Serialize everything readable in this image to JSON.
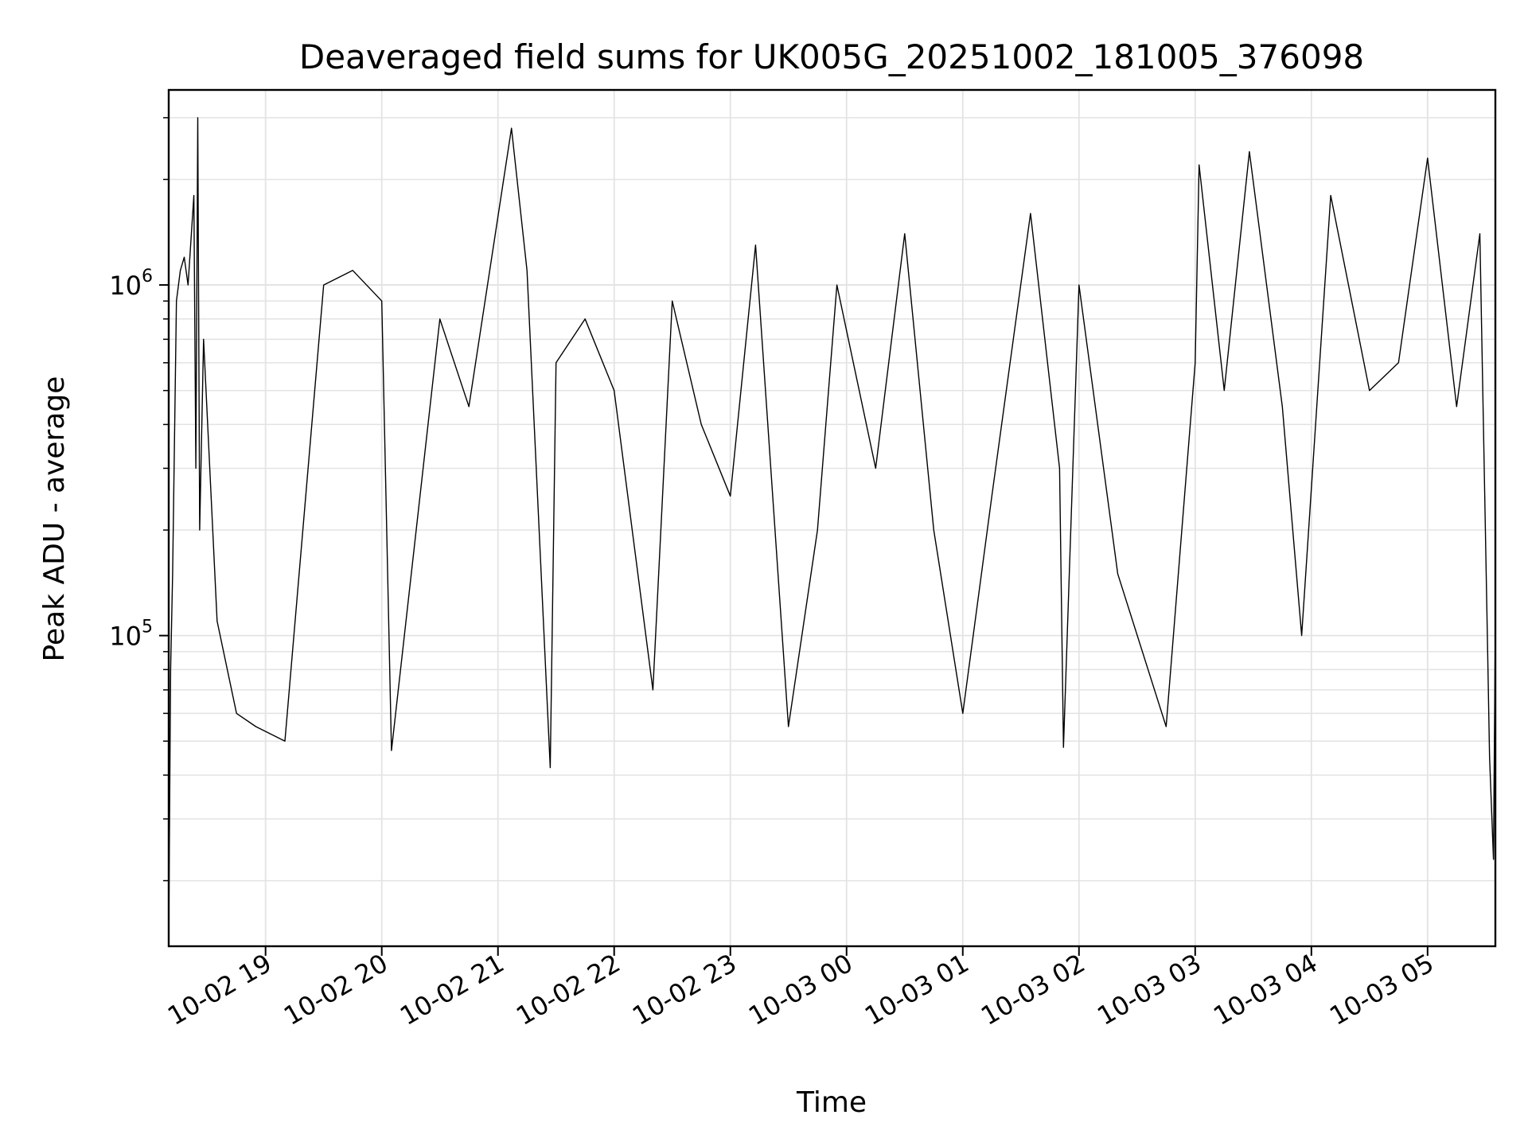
{
  "chart_data": {
    "type": "line",
    "title": "Deaveraged field sums for UK005G_20251002_181005_376098",
    "xlabel": "Time",
    "ylabel": "Peak ADU - average",
    "y_scale": "log",
    "grid": true,
    "line_color": "#000000",
    "xlim": [
      "2025-10-02 18:10",
      "2025-10-03 05:35"
    ],
    "ylim": [
      13000,
      3600000
    ],
    "x_ticks": [
      {
        "t": "2025-10-02 19:00",
        "label": "10-02 19"
      },
      {
        "t": "2025-10-02 20:00",
        "label": "10-02 20"
      },
      {
        "t": "2025-10-02 21:00",
        "label": "10-02 21"
      },
      {
        "t": "2025-10-02 22:00",
        "label": "10-02 22"
      },
      {
        "t": "2025-10-02 23:00",
        "label": "10-02 23"
      },
      {
        "t": "2025-10-03 00:00",
        "label": "10-03 00"
      },
      {
        "t": "2025-10-03 01:00",
        "label": "10-03 01"
      },
      {
        "t": "2025-10-03 02:00",
        "label": "10-03 02"
      },
      {
        "t": "2025-10-03 03:00",
        "label": "10-03 03"
      },
      {
        "t": "2025-10-03 04:00",
        "label": "10-03 04"
      },
      {
        "t": "2025-10-03 05:00",
        "label": "10-03 05"
      }
    ],
    "y_ticks": [
      {
        "value": 100000,
        "base": "10",
        "exp": "5"
      },
      {
        "value": 1000000,
        "base": "10",
        "exp": "6"
      }
    ],
    "series": [
      {
        "points": [
          [
            "2025-10-02 18:10",
            14000
          ],
          [
            "2025-10-02 18:11",
            80000
          ],
          [
            "2025-10-02 18:12",
            150000
          ],
          [
            "2025-10-02 18:14",
            900000
          ],
          [
            "2025-10-02 18:16",
            1100000
          ],
          [
            "2025-10-02 18:18",
            1200000
          ],
          [
            "2025-10-02 18:20",
            1000000
          ],
          [
            "2025-10-02 18:23",
            1800000
          ],
          [
            "2025-10-02 18:24",
            300000
          ],
          [
            "2025-10-02 18:25",
            3000000
          ],
          [
            "2025-10-02 18:26",
            200000
          ],
          [
            "2025-10-02 18:28",
            700000
          ],
          [
            "2025-10-02 18:35",
            110000
          ],
          [
            "2025-10-02 18:45",
            60000
          ],
          [
            "2025-10-02 18:55",
            55000
          ],
          [
            "2025-10-02 19:10",
            50000
          ],
          [
            "2025-10-02 19:30",
            1000000
          ],
          [
            "2025-10-02 19:45",
            1100000
          ],
          [
            "2025-10-02 20:00",
            900000
          ],
          [
            "2025-10-02 20:05",
            47000
          ],
          [
            "2025-10-02 20:30",
            800000
          ],
          [
            "2025-10-02 20:45",
            450000
          ],
          [
            "2025-10-02 21:07",
            2800000
          ],
          [
            "2025-10-02 21:15",
            1100000
          ],
          [
            "2025-10-02 21:30",
            600000
          ],
          [
            "2025-10-02 21:27",
            42000
          ],
          [
            "2025-10-02 21:45",
            800000
          ],
          [
            "2025-10-02 22:00",
            500000
          ],
          [
            "2025-10-02 22:20",
            70000
          ],
          [
            "2025-10-02 22:30",
            900000
          ],
          [
            "2025-10-02 22:45",
            400000
          ],
          [
            "2025-10-02 23:00",
            250000
          ],
          [
            "2025-10-02 23:13",
            1300000
          ],
          [
            "2025-10-02 23:30",
            55000
          ],
          [
            "2025-10-02 23:45",
            200000
          ],
          [
            "2025-10-02 23:55",
            1000000
          ],
          [
            "2025-10-03 00:15",
            300000
          ],
          [
            "2025-10-03 00:30",
            1400000
          ],
          [
            "2025-10-03 00:45",
            200000
          ],
          [
            "2025-10-03 01:00",
            60000
          ],
          [
            "2025-10-03 01:15",
            250000
          ],
          [
            "2025-10-03 01:35",
            1600000
          ],
          [
            "2025-10-03 01:50",
            300000
          ],
          [
            "2025-10-03 01:52",
            48000
          ],
          [
            "2025-10-03 02:00",
            1000000
          ],
          [
            "2025-10-03 02:20",
            150000
          ],
          [
            "2025-10-03 02:45",
            55000
          ],
          [
            "2025-10-03 03:00",
            600000
          ],
          [
            "2025-10-03 03:02",
            2200000
          ],
          [
            "2025-10-03 03:15",
            500000
          ],
          [
            "2025-10-03 03:28",
            2400000
          ],
          [
            "2025-10-03 03:45",
            450000
          ],
          [
            "2025-10-03 03:55",
            100000
          ],
          [
            "2025-10-03 04:10",
            1800000
          ],
          [
            "2025-10-03 04:30",
            500000
          ],
          [
            "2025-10-03 04:45",
            600000
          ],
          [
            "2025-10-03 05:00",
            2300000
          ],
          [
            "2025-10-03 05:15",
            450000
          ],
          [
            "2025-10-03 05:27",
            1400000
          ],
          [
            "2025-10-03 05:31",
            90000
          ],
          [
            "2025-10-03 05:32",
            45000
          ],
          [
            "2025-10-03 05:34",
            23000
          ],
          [
            "2025-10-03 05:35",
            110000
          ]
        ]
      }
    ]
  }
}
